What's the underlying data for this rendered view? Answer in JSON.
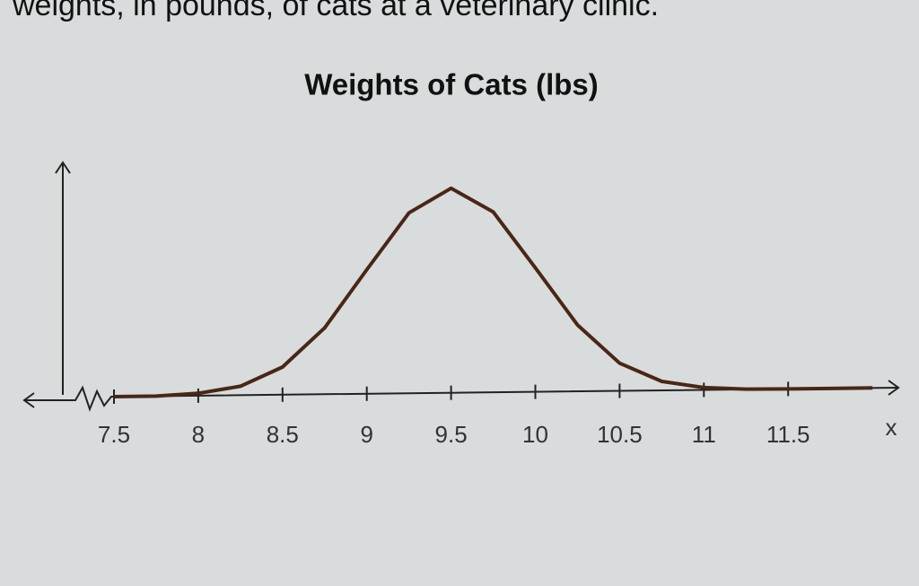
{
  "intro": "weights, in pounds, of cats at a veterinary clinic.",
  "chart_data": {
    "type": "line",
    "title": "Weights of Cats (lbs)",
    "x_label": "x",
    "x": [
      7.5,
      7.75,
      8,
      8.25,
      8.5,
      8.75,
      9,
      9.25,
      9.5,
      9.75,
      10,
      10.25,
      10.5,
      10.75,
      11,
      11.25,
      11.5,
      11.75,
      12
    ],
    "values": [
      0,
      0,
      0.009,
      0.035,
      0.108,
      0.259,
      0.484,
      0.704,
      0.798,
      0.704,
      0.484,
      0.259,
      0.108,
      0.035,
      0.009,
      0.001,
      0,
      0,
      0
    ],
    "color": "#4a2616",
    "xlim": [
      7.5,
      12
    ],
    "ylim": [
      0,
      0.9
    ],
    "xticks": [
      7.5,
      8,
      8.5,
      9,
      9.5,
      10,
      10.5,
      11,
      11.5
    ]
  }
}
